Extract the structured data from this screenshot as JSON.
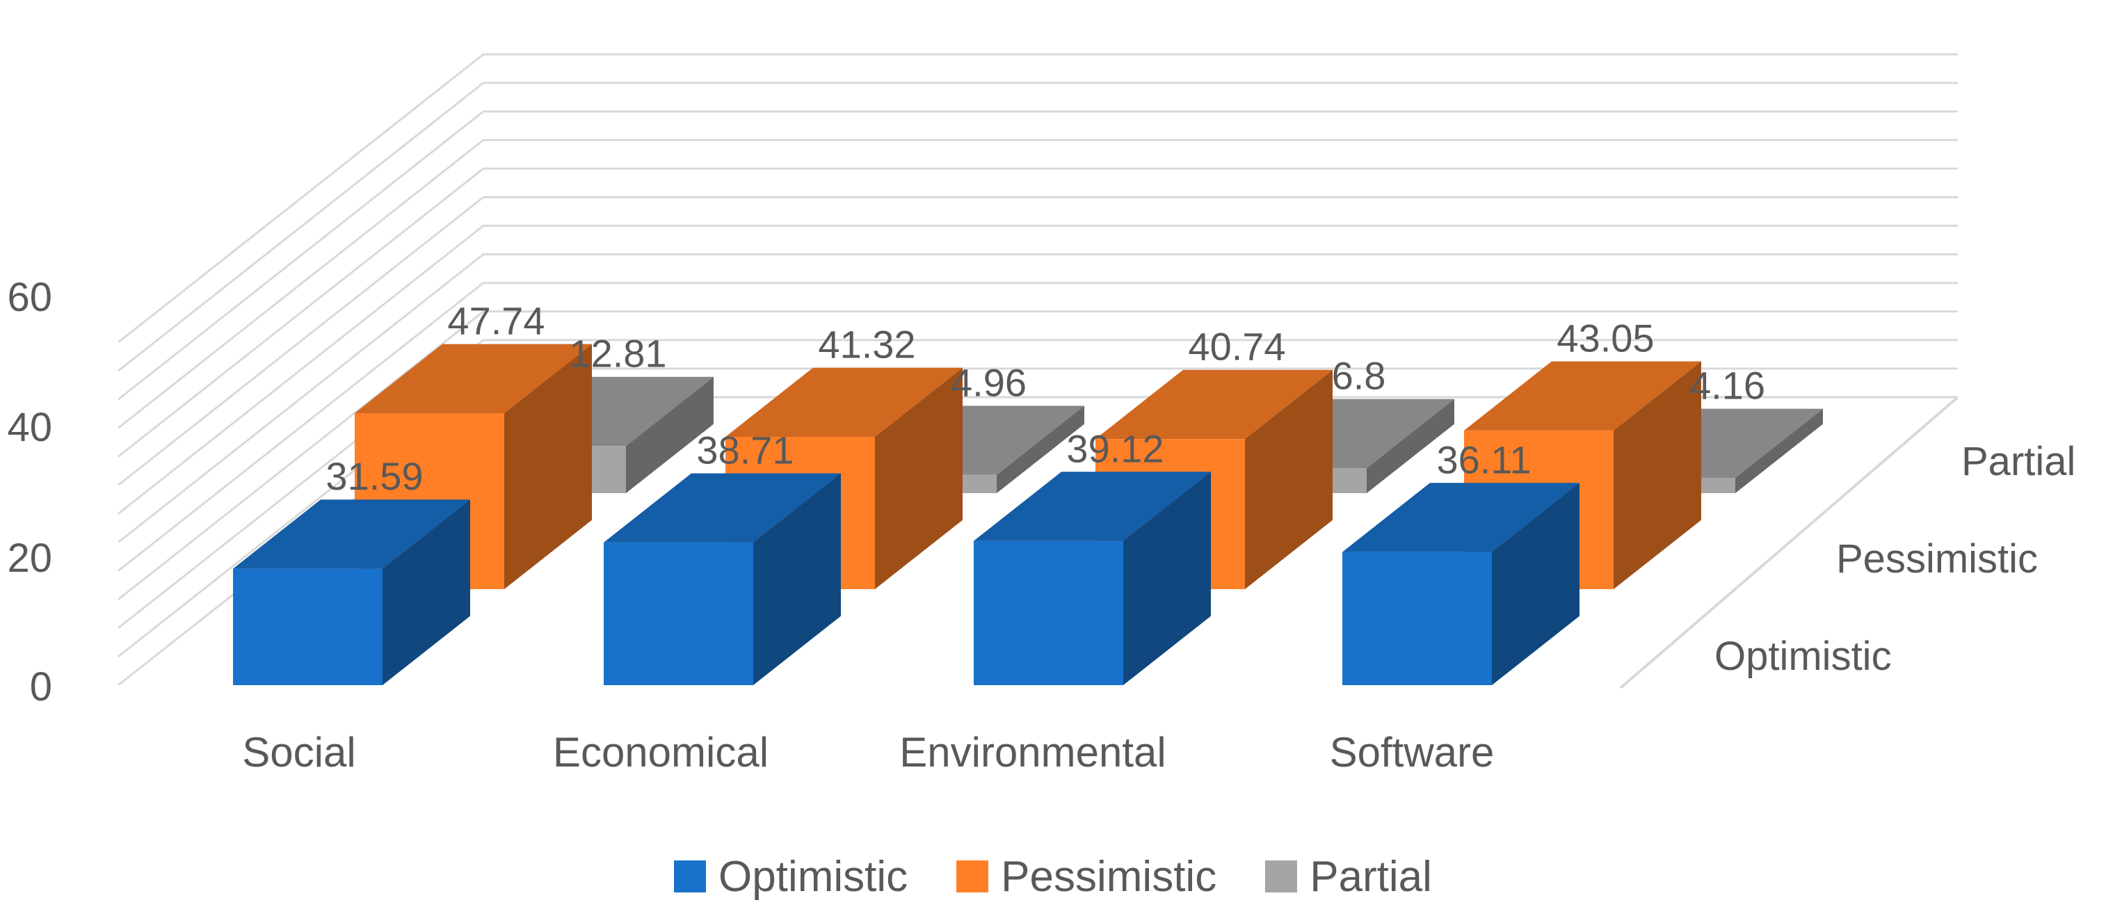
{
  "chart_data": {
    "type": "bar",
    "subtype": "3d-column",
    "title": "",
    "xlabel": "",
    "ylabel": "",
    "ylim": [
      0,
      60
    ],
    "yticks": [
      0,
      20,
      40,
      60
    ],
    "categories": [
      "Social",
      "Economical",
      "Environmental",
      "Software"
    ],
    "series": [
      {
        "name": "Optimistic",
        "values": [
          31.59,
          38.71,
          39.12,
          36.11
        ],
        "color": "#1872CC"
      },
      {
        "name": "Pessimistic",
        "values": [
          47.74,
          41.32,
          40.74,
          43.05
        ],
        "color": "#FF7F27"
      },
      {
        "name": "Partial",
        "values": [
          12.81,
          4.96,
          6.8,
          4.16
        ],
        "color": "#A5A5A5"
      }
    ],
    "depth_labels": [
      "Optimistic",
      "Pessimistic",
      "Partial"
    ],
    "value_labels": [
      [
        "31.59",
        "38.71",
        "39.12",
        "36.11"
      ],
      [
        "47.74",
        "41.32",
        "40.74",
        "43.05"
      ],
      [
        "12.81",
        "4.96",
        "6.8",
        "4.16"
      ]
    ],
    "legend_position": "bottom",
    "gridlines": true
  }
}
